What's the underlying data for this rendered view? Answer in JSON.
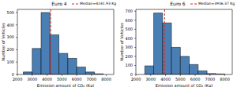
{
  "chart_data": [
    {
      "type": "histogram",
      "title": "Euro 4",
      "x_label": "Emission amount of CO₂ (Kg)",
      "y_label": "Number of Vehicles",
      "bins": [
        2400,
        3000,
        3600,
        4200,
        4800,
        5400,
        6000,
        6600,
        7200,
        7800
      ],
      "counts": [
        20,
        210,
        500,
        320,
        170,
        130,
        60,
        20,
        5
      ],
      "color": "#4a7fb5",
      "xlim": [
        2000,
        8500
      ],
      "xticks": [
        2000,
        3000,
        4000,
        5000,
        6000,
        7000,
        8000
      ],
      "ylim": [
        0,
        525
      ],
      "yticks": [
        0,
        100,
        200,
        300,
        400,
        500
      ],
      "grid": false,
      "legend": "upper right",
      "median": {
        "name": "Median=4241.93 Kg",
        "value": 4241.93,
        "color": "#d62728",
        "line_style": "dashed"
      }
    },
    {
      "type": "histogram",
      "title": "Euro 6",
      "x_label": "Emission amount of CO₂ (Kg)",
      "y_label": "Number of Vehicles",
      "bins": [
        2600,
        3200,
        3800,
        4400,
        5000,
        5600,
        6200,
        6800,
        7400,
        8000
      ],
      "counts": [
        95,
        680,
        570,
        300,
        200,
        110,
        40,
        10,
        5
      ],
      "color": "#4a7fb5",
      "xlim": [
        2000,
        8500
      ],
      "xticks": [
        2000,
        3000,
        4000,
        5000,
        6000,
        7000,
        8000
      ],
      "ylim": [
        0,
        720
      ],
      "yticks": [
        0,
        100,
        200,
        300,
        400,
        500,
        600,
        700
      ],
      "grid": false,
      "legend": "upper right",
      "median": {
        "name": "Median=3936.37 Kg",
        "value": 3936.37,
        "color": "#d62728",
        "line_style": "dashed"
      }
    }
  ]
}
